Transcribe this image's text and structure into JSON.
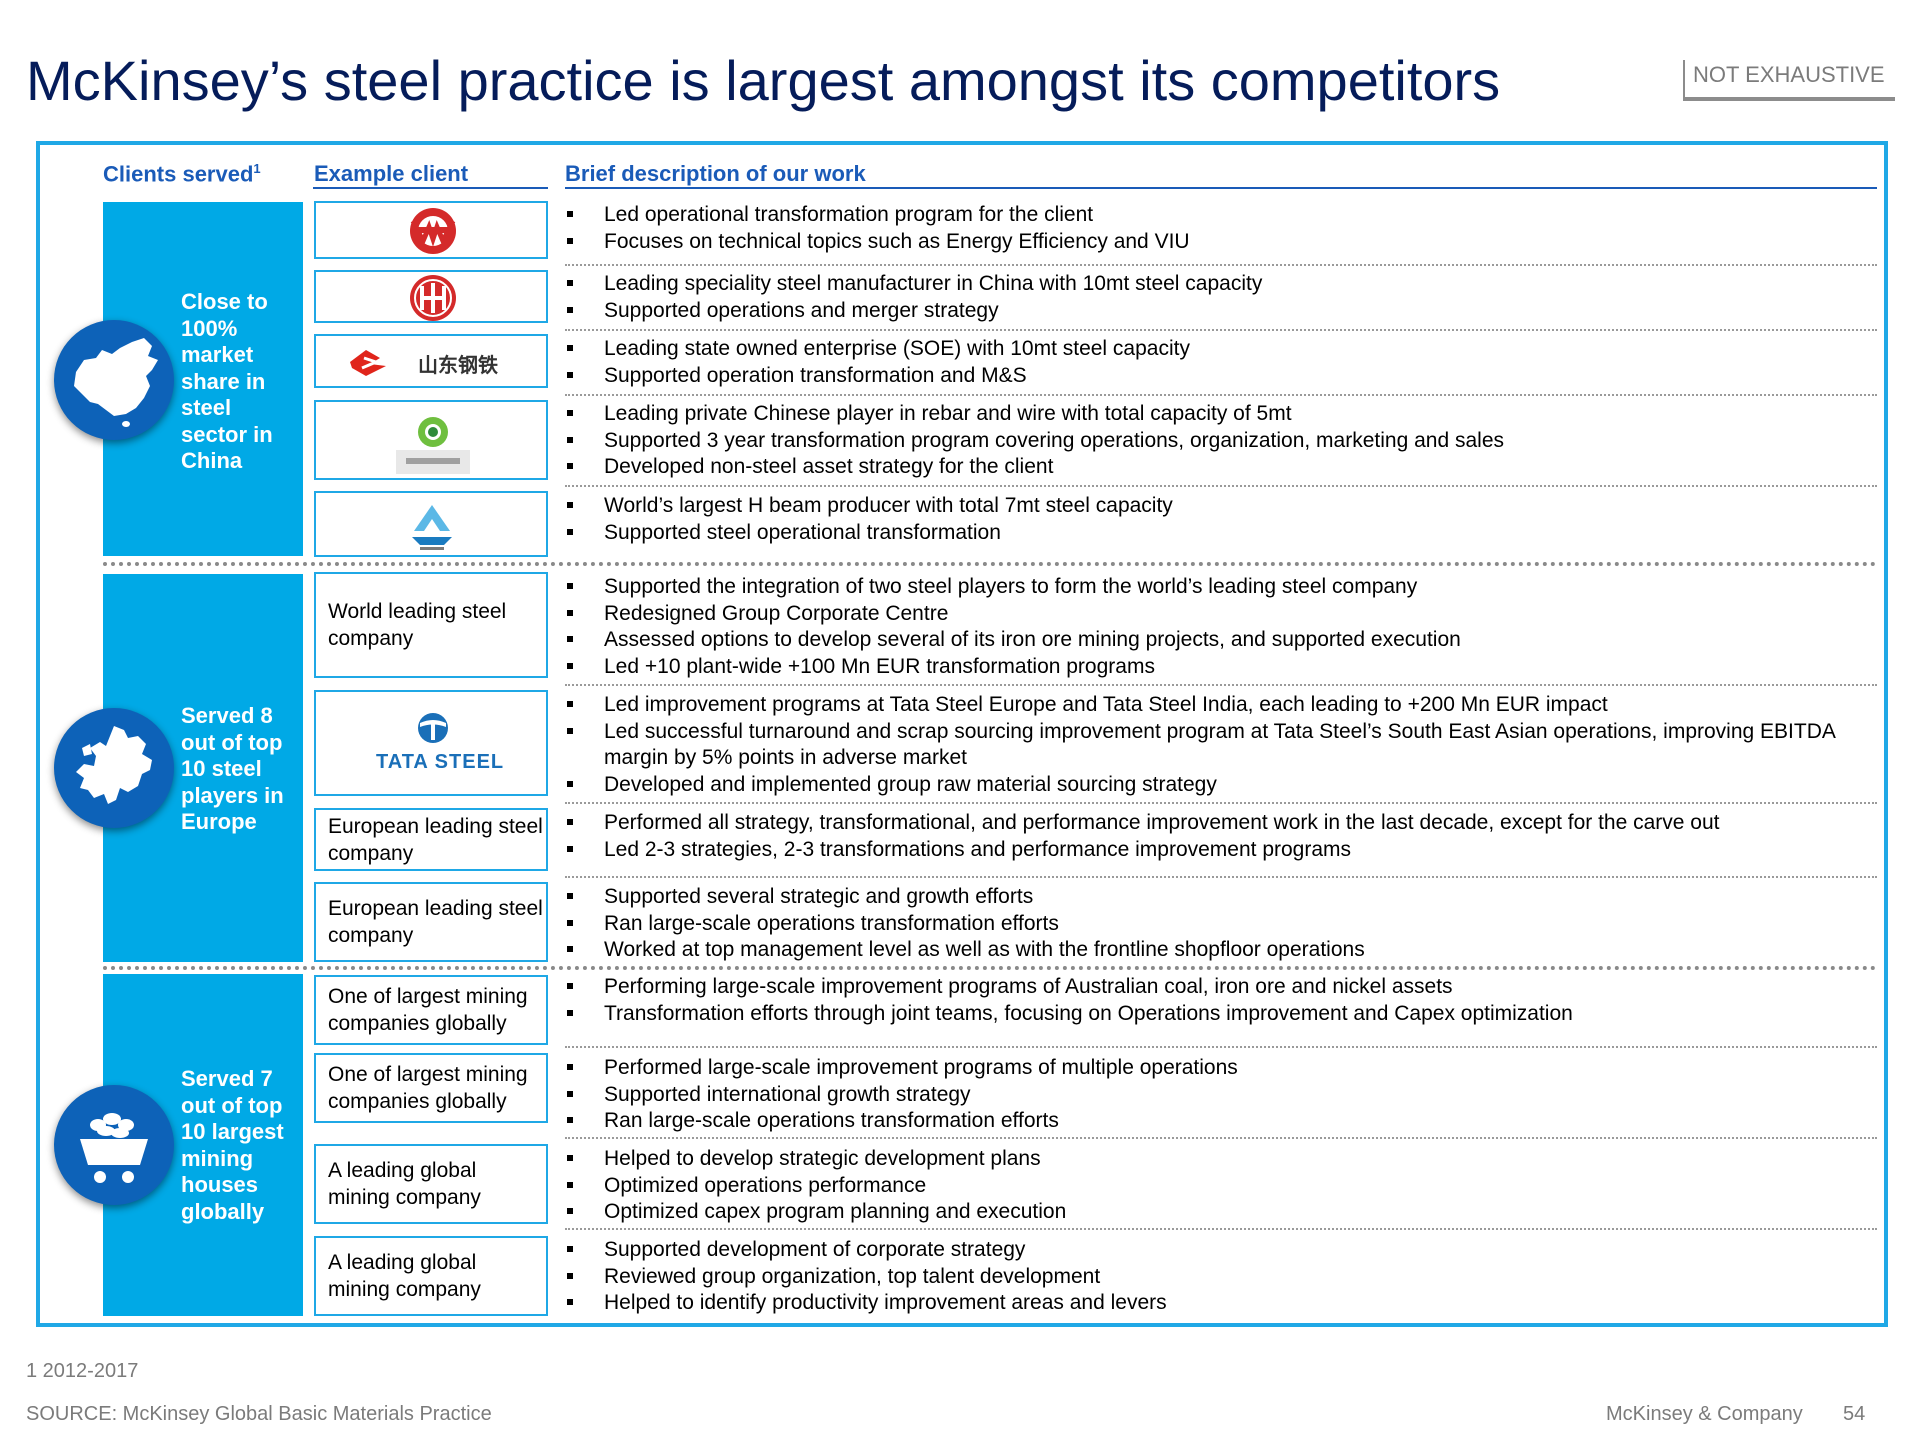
{
  "title": "McKinsey’s steel practice is largest amongst its competitors",
  "tag": "NOT EXHAUSTIVE",
  "headers": {
    "clients": "Clients served",
    "clients_sup": "1",
    "example": "Example client",
    "description": "Brief description of our work"
  },
  "groups": [
    {
      "lines": [
        "Close to",
        "100%",
        "market",
        "share in",
        "steel",
        "sector in",
        "China"
      ],
      "icon": "china-map-icon"
    },
    {
      "lines": [
        "Served 8",
        "out of top",
        "10 steel",
        "players in",
        "Europe"
      ],
      "icon": "europe-map-icon"
    },
    {
      "lines": [
        "Served 7",
        "out of top",
        "10 largest",
        "mining",
        "houses",
        "globally"
      ],
      "icon": "mining-cart-icon"
    }
  ],
  "rows": [
    {
      "client_logo": "wisco-logo",
      "client": "",
      "bullets": [
        "Led operational transformation program for the client",
        "Focuses on technical topics such as Energy Efficiency and VIU"
      ]
    },
    {
      "client_logo": "citic-logo",
      "client": "",
      "bullets": [
        "Leading speciality steel manufacturer in China with 10mt steel capacity",
        "Supported operations and merger strategy"
      ]
    },
    {
      "client_logo": "shandong-steel-logo",
      "client": "",
      "logo_text": "山东钢铁",
      "bullets": [
        "Leading state owned enterprise (SOE) with 10mt steel capacity",
        "Supported operation transformation and M&S"
      ]
    },
    {
      "client_logo": "green-circle-logo",
      "client": "",
      "bullets": [
        "Leading private Chinese player in rebar and wire with total capacity of 5mt",
        "Supported 3 year transformation program covering operations, organization, marketing and sales",
        "Developed non-steel asset strategy for the client"
      ]
    },
    {
      "client_logo": "h-beam-logo",
      "client": "",
      "bullets": [
        "World’s largest H beam producer with total 7mt steel capacity",
        "Supported steel operational transformation"
      ]
    },
    {
      "client_logo": "",
      "client": "World leading steel company",
      "bullets": [
        "Supported the integration of two steel players to form the world’s leading steel company",
        "Redesigned Group Corporate Centre",
        "Assessed options to develop several of its iron ore mining projects, and supported execution",
        "Led +10 plant-wide +100 Mn EUR transformation programs"
      ]
    },
    {
      "client_logo": "tata-steel-logo",
      "client": "",
      "logo_text": "TATA STEEL",
      "bullets": [
        "Led improvement programs at Tata Steel Europe and Tata Steel India, each leading to +200 Mn EUR impact",
        "Led successful turnaround and scrap sourcing improvement program at Tata Steel’s South East Asian operations, improving EBITDA margin by 5% points in adverse market",
        "Developed and implemented group raw material sourcing strategy"
      ]
    },
    {
      "client_logo": "",
      "client": "European leading steel company",
      "bullets": [
        "Performed all strategy, transformational, and performance improvement work in the last decade, except for the carve out",
        "Led 2-3 strategies, 2-3 transformations and performance improvement programs"
      ]
    },
    {
      "client_logo": "",
      "client": "European leading steel company",
      "bullets": [
        "Supported several strategic and growth efforts",
        "Ran large-scale operations transformation efforts",
        "Worked at top management level as well as with the frontline shopfloor operations"
      ]
    },
    {
      "client_logo": "",
      "client": "One of largest mining companies globally",
      "bullets": [
        "Performing large-scale improvement programs of Australian coal, iron ore and nickel assets",
        "Transformation efforts through joint teams, focusing on Operations improvement and Capex optimization"
      ]
    },
    {
      "client_logo": "",
      "client": "One of largest mining companies globally",
      "bullets": [
        "Performed large-scale improvement programs of multiple operations",
        "Supported international growth strategy",
        "Ran large-scale operations transformation efforts"
      ]
    },
    {
      "client_logo": "",
      "client": "A leading global mining company",
      "bullets": [
        "Helped to develop strategic development plans",
        "Optimized operations performance",
        "Optimized capex program planning and execution"
      ]
    },
    {
      "client_logo": "",
      "client": "A leading global mining company",
      "bullets": [
        "Supported development of corporate strategy",
        "Reviewed group organization, top talent development",
        "Helped to identify productivity improvement areas and levers"
      ]
    }
  ],
  "footnote": "1 2012-2017",
  "source": "SOURCE: McKinsey Global Basic Materials Practice",
  "company": "McKinsey & Company",
  "page_number": "54",
  "colors": {
    "brand_navy": "#051c5a",
    "accent_cyan": "#00a9e6",
    "circle_blue": "#0d62b8",
    "header_blue": "#1a5bb8"
  }
}
